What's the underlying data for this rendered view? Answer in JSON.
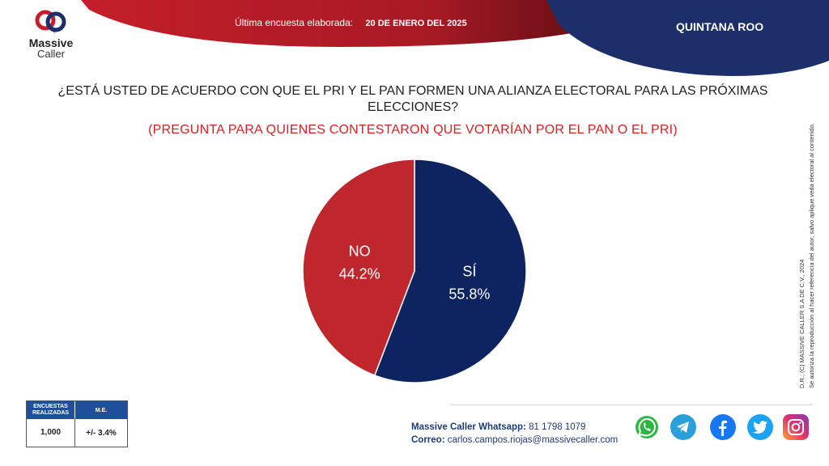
{
  "header": {
    "survey_label": "Última encuesta elaborada:",
    "survey_date": "20 DE ENERO DEL 2025",
    "region": "QUINTANA ROO"
  },
  "logo": {
    "line1": "Massive",
    "line2": "Caller"
  },
  "question": "¿ESTÁ USTED DE ACUERDO CON QUE EL PRI Y EL PAN FORMEN UNA ALIANZA ELECTORAL PARA LAS PRÓXIMAS ELECCIONES?",
  "subquestion": "(PREGUNTA PARA QUIENES CONTESTARON QUE VOTARÍAN POR EL PAN O EL PRI)",
  "chart_data": {
    "type": "pie",
    "categories": [
      "SÍ",
      "NO"
    ],
    "values": [
      55.8,
      44.2
    ],
    "value_labels": [
      "55.8%",
      "44.2%"
    ],
    "colors": [
      "#0d2461",
      "#c0272d"
    ]
  },
  "copyright": {
    "line1": "D.R.; (C) MASSIVE CALLER S.A DE C.V., 2024",
    "line2": "Se autoriza la reproducción al hacer referencia del autor, salvo aplique veda electoral al contenido."
  },
  "stats": {
    "col1_header": "ENCUESTAS REALIZADAS",
    "col2_header": "M.E.",
    "col1_value": "1,000",
    "col2_value": "+/- 3.4%"
  },
  "contact": {
    "whatsapp_label": "Massive Caller Whatsapp:",
    "whatsapp_value": "81 1798 1079",
    "email_label": "Correo:",
    "email_value": "carlos.campos.riojas@massivecaller.com"
  },
  "social": [
    "whatsapp-icon",
    "telegram-icon",
    "facebook-icon",
    "twitter-icon",
    "instagram-icon"
  ],
  "colors": {
    "red": "#c0272d",
    "navy": "#0d2461",
    "accent_blue": "#1f4e9a"
  }
}
